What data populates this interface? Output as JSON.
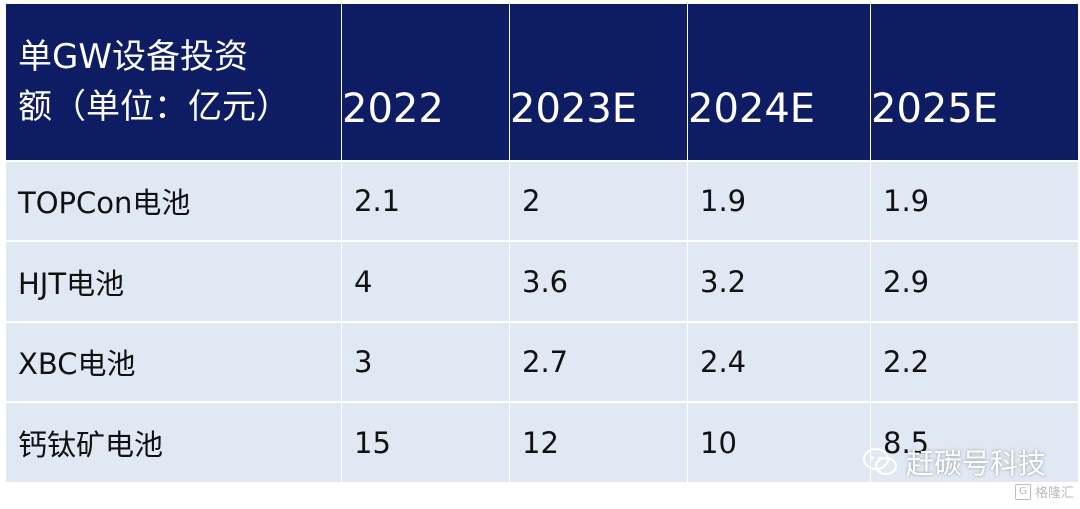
{
  "table": {
    "header": {
      "first_line1": "单GW设备投资",
      "first_line2": "额（单位：亿元）",
      "years": [
        "2022",
        "2023E",
        "2024E",
        "2025E"
      ]
    },
    "rows": [
      {
        "label": "TOPCon电池",
        "values": [
          "2.1",
          "2",
          "1.9",
          "1.9"
        ]
      },
      {
        "label": "HJT电池",
        "values": [
          "4",
          "3.6",
          "3.2",
          "2.9"
        ]
      },
      {
        "label": "XBC电池",
        "values": [
          "3",
          "2.7",
          "2.4",
          "2.2"
        ]
      },
      {
        "label": "钙钛矿电池",
        "values": [
          "15",
          "12",
          "10",
          "8.5"
        ]
      }
    ]
  },
  "watermark": {
    "text": "赶碳号科技",
    "icon": "wechat-icon"
  },
  "corner_logo": {
    "mark": "G",
    "text": "格隆汇"
  },
  "colors": {
    "header_bg": "#0e1c63",
    "cell_bg": "#dfe8f3",
    "header_text": "#ffffff"
  }
}
